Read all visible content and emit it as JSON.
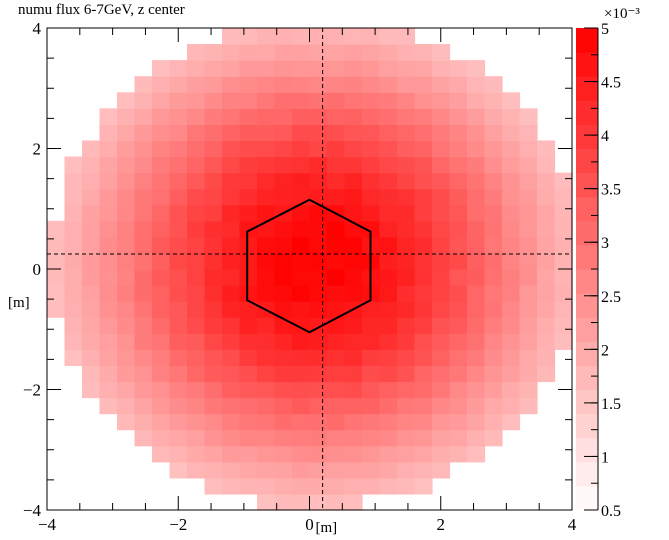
{
  "title": "numu flux 6-7GeV, z center",
  "chart_data": {
    "type": "heatmap",
    "title": "numu flux 6-7GeV, z center",
    "xlabel": "[m]",
    "ylabel": "[m]",
    "xlim": [
      -4,
      4
    ],
    "ylim": [
      -4,
      4
    ],
    "xticks": [
      -4,
      -2,
      0,
      2,
      4
    ],
    "yticks": [
      -4,
      -2,
      0,
      2,
      4
    ],
    "xtick_labels": [
      "−4",
      "−2",
      "0",
      "2",
      "4"
    ],
    "ytick_labels": [
      "−4",
      "−2",
      "0",
      "2",
      "4"
    ],
    "colorbar": {
      "min": 0.5,
      "max": 5,
      "multiplier": "×10⁻³",
      "ticks": [
        0.5,
        1,
        1.5,
        2,
        2.5,
        3,
        3.5,
        4,
        4.5,
        5
      ],
      "tick_labels": [
        "0.5",
        "1",
        "1.5",
        "2",
        "2.5",
        "3",
        "3.5",
        "4",
        "4.5",
        "5"
      ],
      "color_low": "#ffffff",
      "color_high": "#ff0000"
    },
    "bins": {
      "nx": 30,
      "ny": 30
    },
    "peak": {
      "x": 0.1,
      "y": 0.1,
      "value": 5.0
    },
    "sigma": 2.6,
    "crosshair": {
      "x": 0.2,
      "y": 0.25
    },
    "hexagon_vertices": [
      [
        0,
        1.15
      ],
      [
        0.93,
        0.62
      ],
      [
        0.93,
        -0.52
      ],
      [
        0,
        -1.05
      ],
      [
        -0.95,
        -0.52
      ],
      [
        -0.95,
        0.62
      ]
    ]
  }
}
